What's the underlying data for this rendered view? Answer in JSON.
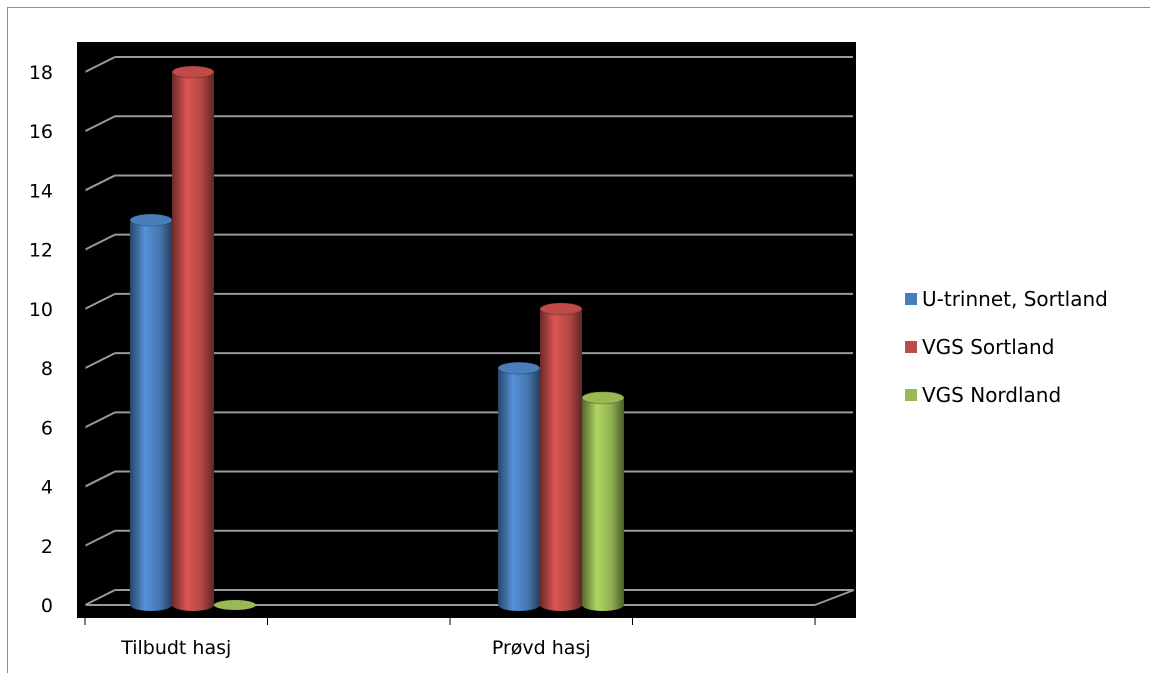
{
  "chart_data": {
    "type": "bar",
    "style": "3d-cylinder",
    "categories": [
      "Tilbudt hasj",
      "Prøvd hasj"
    ],
    "series": [
      {
        "name": "U-trinnet, Sortland",
        "values": [
          13,
          8
        ],
        "color": "#4a7ebb"
      },
      {
        "name": "VGS Sortland",
        "values": [
          18,
          10
        ],
        "color": "#be4b48"
      },
      {
        "name": "VGS Nordland",
        "values": [
          0,
          7
        ],
        "color": "#98b954"
      }
    ],
    "ylim": [
      0,
      18
    ],
    "yticks": [
      0,
      2,
      4,
      6,
      8,
      10,
      12,
      14,
      16,
      18
    ],
    "grid": true,
    "plot_background": "#000000",
    "legend_position": "right"
  }
}
